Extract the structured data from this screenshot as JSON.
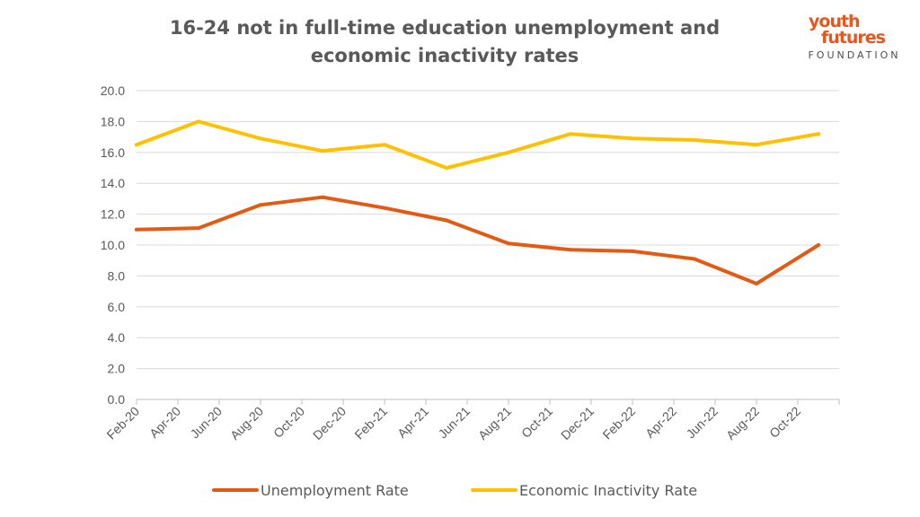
{
  "logo": {
    "line1": "youth",
    "line2": "futures",
    "line3": "FOUNDATION",
    "color": "#E8561C"
  },
  "chart_data": {
    "type": "line",
    "title": "16-24 not in full-time education unemployment and economic inactivity rates",
    "xlabel": "",
    "ylabel": "",
    "ylim": [
      0,
      20
    ],
    "yticks": [
      "0.0",
      "2.0",
      "4.0",
      "6.0",
      "8.0",
      "10.0",
      "12.0",
      "14.0",
      "16.0",
      "18.0",
      "20.0"
    ],
    "x_tick_labels": [
      "Feb-20",
      "Apr-20",
      "Jun-20",
      "Aug-20",
      "Oct-20",
      "Dec-20",
      "Feb-21",
      "Apr-21",
      "Jun-21",
      "Aug-21",
      "Oct-21",
      "Dec-21",
      "Feb-22",
      "Apr-22",
      "Jun-22",
      "Aug-22",
      "Oct-22"
    ],
    "grid": "horizontal",
    "legend_position": "bottom",
    "series": [
      {
        "name": "Unemployment Rate",
        "color": "#E35A14",
        "points": [
          {
            "x": "Feb-20",
            "y": 11.0
          },
          {
            "x": "May-20",
            "y": 11.1
          },
          {
            "x": "Aug-20",
            "y": 12.6
          },
          {
            "x": "Nov-20",
            "y": 13.1
          },
          {
            "x": "Feb-21",
            "y": 12.4
          },
          {
            "x": "May-21",
            "y": 11.6
          },
          {
            "x": "Aug-21",
            "y": 10.1
          },
          {
            "x": "Nov-21",
            "y": 9.7
          },
          {
            "x": "Feb-22",
            "y": 9.6
          },
          {
            "x": "May-22",
            "y": 9.1
          },
          {
            "x": "Aug-22",
            "y": 7.5
          },
          {
            "x": "Nov-22",
            "y": 10.0
          }
        ]
      },
      {
        "name": "Economic Inactivity Rate",
        "color": "#FFC000",
        "points": [
          {
            "x": "Feb-20",
            "y": 16.5
          },
          {
            "x": "May-20",
            "y": 18.0
          },
          {
            "x": "Aug-20",
            "y": 16.9
          },
          {
            "x": "Nov-20",
            "y": 16.1
          },
          {
            "x": "Feb-21",
            "y": 16.5
          },
          {
            "x": "May-21",
            "y": 15.0
          },
          {
            "x": "Aug-21",
            "y": 16.0
          },
          {
            "x": "Nov-21",
            "y": 17.2
          },
          {
            "x": "Feb-22",
            "y": 16.9
          },
          {
            "x": "May-22",
            "y": 16.8
          },
          {
            "x": "Aug-22",
            "y": 16.5
          },
          {
            "x": "Nov-22",
            "y": 17.2
          }
        ]
      }
    ]
  }
}
